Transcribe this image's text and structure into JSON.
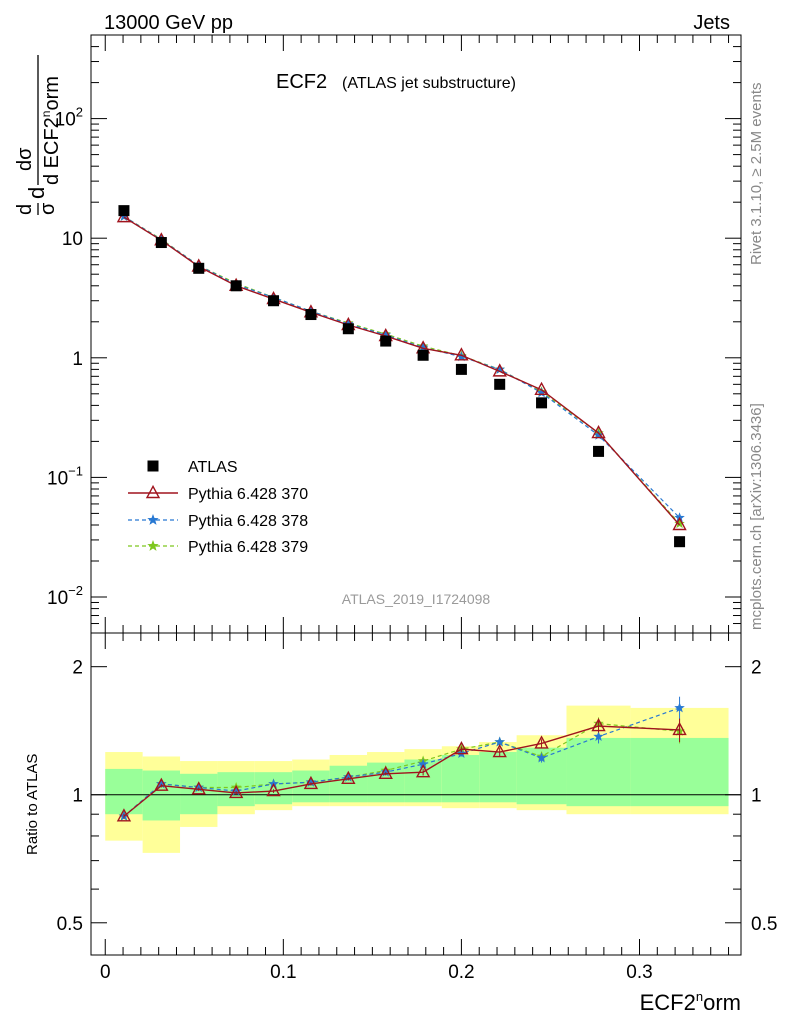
{
  "header": {
    "left": "13000 GeV pp",
    "right": "Jets"
  },
  "side_labels": {
    "top": "Rivet 3.1.10, ≥ 2.5M events",
    "bottom": "mcplots.cern.ch [arXiv:1306.3436]"
  },
  "chart_data": [
    {
      "type": "scatter",
      "title": "ECF2",
      "subtitle": "(ATLAS jet substructure)",
      "analysis_label": "ATLAS_2019_I1724098",
      "ylabel": "1/σ dσ/d ECF2norm",
      "yscale": "log",
      "ylim": [
        0.005,
        500
      ],
      "yticks": [
        {
          "value": 0.01,
          "base": "10",
          "exp": "−2"
        },
        {
          "value": 0.1,
          "base": "10",
          "exp": "−1"
        },
        {
          "value": 1,
          "base": "1",
          "exp": ""
        },
        {
          "value": 10,
          "base": "10",
          "exp": ""
        },
        {
          "value": 100,
          "base": "10",
          "exp": "2"
        }
      ],
      "xlim": [
        -0.008,
        0.357
      ],
      "x": [
        0.0105,
        0.0315,
        0.0525,
        0.0735,
        0.0945,
        0.1155,
        0.1365,
        0.1575,
        0.1785,
        0.2,
        0.2215,
        0.245,
        0.277,
        0.3225
      ],
      "legend": {
        "position": "bottom-left"
      },
      "series": [
        {
          "name": "ATLAS",
          "color": "#000000",
          "marker": "square",
          "line": "none",
          "values": [
            17.0,
            9.2,
            5.6,
            4.0,
            3.0,
            2.3,
            1.75,
            1.38,
            1.05,
            0.8,
            0.6,
            0.42,
            0.165,
            0.029
          ]
        },
        {
          "name": "Pythia 6.428 370",
          "color": "#a0141e",
          "marker": "triangle",
          "line": "solid",
          "values": [
            15.0,
            9.6,
            5.8,
            4.0,
            3.1,
            2.4,
            1.88,
            1.52,
            1.2,
            1.05,
            0.77,
            0.54,
            0.235,
            0.04
          ]
        },
        {
          "name": "Pythia 6.428 378",
          "color": "#2878d2",
          "marker": "star",
          "line": "dashed",
          "values": [
            15.2,
            9.7,
            5.9,
            4.1,
            3.2,
            2.45,
            1.92,
            1.55,
            1.22,
            1.02,
            0.8,
            0.51,
            0.225,
            0.046
          ]
        },
        {
          "name": "Pythia 6.428 379",
          "color": "#7ec81e",
          "marker": "star",
          "line": "dashed",
          "values": [
            15.2,
            9.8,
            5.9,
            4.2,
            3.2,
            2.45,
            1.95,
            1.58,
            1.25,
            1.04,
            0.8,
            0.52,
            0.235,
            0.041
          ]
        }
      ]
    },
    {
      "type": "scatter",
      "ylabel": "Ratio to ATLAS",
      "xlabel": "ECF2norm",
      "yscale": "log",
      "ylim": [
        0.42,
        2.4
      ],
      "yticks": [
        {
          "value": 0.5,
          "label": "0.5"
        },
        {
          "value": 1,
          "label": "1"
        },
        {
          "value": 2,
          "label": "2"
        }
      ],
      "xticks": [
        {
          "value": 0,
          "label": "0"
        },
        {
          "value": 0.1,
          "label": "0.1"
        },
        {
          "value": 0.2,
          "label": "0.2"
        },
        {
          "value": 0.3,
          "label": "0.3"
        }
      ],
      "reference_line": 1,
      "bins": [
        0,
        0.021,
        0.042,
        0.063,
        0.084,
        0.105,
        0.126,
        0.147,
        0.168,
        0.189,
        0.21,
        0.231,
        0.259,
        0.295,
        0.35
      ],
      "band_outer": {
        "color": "#ffff99",
        "lower": [
          0.78,
          0.73,
          0.84,
          0.9,
          0.92,
          0.94,
          0.94,
          0.94,
          0.94,
          0.93,
          0.93,
          0.92,
          0.9,
          0.9
        ],
        "upper": [
          1.26,
          1.23,
          1.2,
          1.2,
          1.2,
          1.21,
          1.24,
          1.26,
          1.28,
          1.3,
          1.33,
          1.38,
          1.62,
          1.6
        ]
      },
      "band_inner": {
        "color": "#99ff99",
        "lower": [
          0.9,
          0.87,
          0.9,
          0.94,
          0.95,
          0.96,
          0.96,
          0.96,
          0.96,
          0.96,
          0.96,
          0.95,
          0.94,
          0.94
        ],
        "upper": [
          1.15,
          1.14,
          1.12,
          1.13,
          1.13,
          1.14,
          1.17,
          1.19,
          1.21,
          1.24,
          1.26,
          1.29,
          1.36,
          1.36
        ]
      },
      "series": [
        {
          "name": "Pythia 6.428 370",
          "color": "#a0141e",
          "marker": "triangle",
          "line": "solid",
          "values": [
            0.89,
            1.05,
            1.03,
            1.01,
            1.02,
            1.06,
            1.09,
            1.12,
            1.13,
            1.28,
            1.26,
            1.32,
            1.45,
            1.42
          ],
          "errors": [
            0.01,
            0.01,
            0.01,
            0.01,
            0.01,
            0.01,
            0.01,
            0.01,
            0.02,
            0.02,
            0.03,
            0.03,
            0.05,
            0.09
          ]
        },
        {
          "name": "Pythia 6.428 378",
          "color": "#2878d2",
          "marker": "star",
          "line": "dashed",
          "values": [
            0.89,
            1.06,
            1.04,
            1.02,
            1.06,
            1.07,
            1.1,
            1.13,
            1.18,
            1.25,
            1.33,
            1.22,
            1.37,
            1.6
          ],
          "errors": [
            0.01,
            0.01,
            0.01,
            0.01,
            0.01,
            0.01,
            0.01,
            0.01,
            0.02,
            0.02,
            0.03,
            0.03,
            0.05,
            0.1
          ]
        },
        {
          "name": "Pythia 6.428 379",
          "color": "#7ec81e",
          "marker": "star",
          "line": "dashed",
          "values": [
            0.89,
            1.06,
            1.04,
            1.04,
            1.06,
            1.07,
            1.1,
            1.14,
            1.2,
            1.28,
            1.33,
            1.23,
            1.47,
            1.41
          ],
          "errors": [
            0.01,
            0.01,
            0.01,
            0.01,
            0.01,
            0.01,
            0.01,
            0.01,
            0.02,
            0.02,
            0.03,
            0.03,
            0.05,
            0.09
          ]
        }
      ]
    }
  ]
}
